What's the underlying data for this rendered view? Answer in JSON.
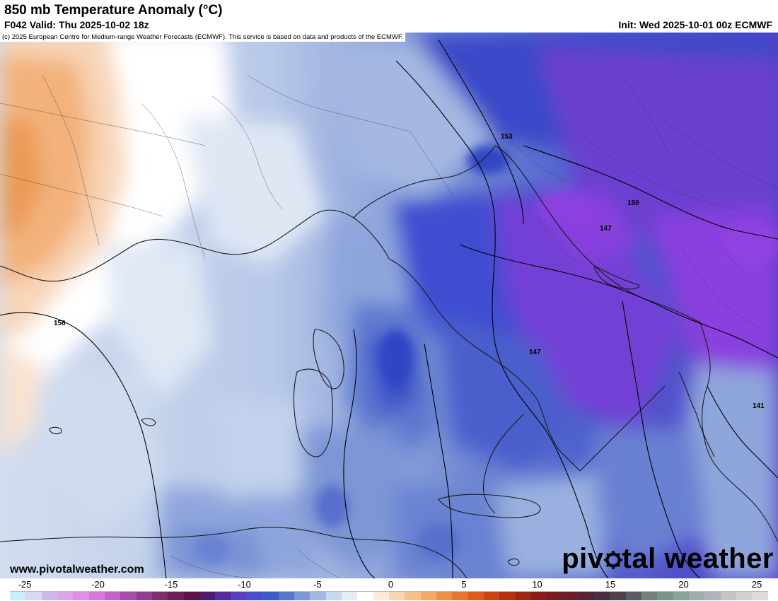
{
  "header": {
    "title": "850 mb Temperature Anomaly (°C)",
    "valid": "F042 Valid: Thu 2025-10-02 18z",
    "init": "Init: Wed 2025-10-01 00z ECMWF"
  },
  "copyright": "(c) 2025 European Centre for Medium-range Weather Forecasts (ECMWF). This service is based on data and products of the ECMWF.",
  "footer": {
    "url": "www.pivotalweather.com",
    "brand_pre": "piv",
    "brand_post": "tal weather"
  },
  "contour_labels": [
    "153",
    "150",
    "147",
    "156",
    "147",
    "141"
  ],
  "colorbar": {
    "ticks": [
      "-25",
      "-20",
      "-15",
      "-10",
      "-5",
      "0",
      "5",
      "10",
      "15",
      "20",
      "25"
    ],
    "colors": [
      "#c8eef8",
      "#d8d8f5",
      "#cdb8ee",
      "#d9a6ea",
      "#e08fe6",
      "#d978d8",
      "#c563c8",
      "#a84ea8",
      "#913e8e",
      "#7e2f70",
      "#6e1f58",
      "#5c1448",
      "#4f1a6e",
      "#5a2a9c",
      "#5c3ec2",
      "#4a4dd2",
      "#3e5bc6",
      "#5a76cc",
      "#7e96d6",
      "#a4b8e2",
      "#c8d8ee",
      "#e4ecf6",
      "#ffffff",
      "#fdebd8",
      "#fad6b0",
      "#f7c08a",
      "#f3aa68",
      "#ee9048",
      "#e87432",
      "#e05a1e",
      "#cf4414",
      "#b8300e",
      "#a02410",
      "#8c1c18",
      "#7a1a22",
      "#6c1e2c",
      "#5a2238",
      "#4e2c40",
      "#50404c",
      "#5e5a62",
      "#748078",
      "#7c948a",
      "#8aa29e",
      "#9eacac",
      "#b0b4b8",
      "#c4c4c8",
      "#d4d0d0",
      "#e0dada"
    ]
  },
  "colors": {
    "warm_orange": "#f3b27c",
    "deep_orange": "#ec9a55",
    "neutral": "#ffffff",
    "light_blue": "#c9d7ec",
    "mid_blue": "#8fa6dc",
    "blue": "#5f78cf",
    "deep_blue": "#3a48c8",
    "purple": "#6a3fd0",
    "violet": "#8a3fde"
  }
}
